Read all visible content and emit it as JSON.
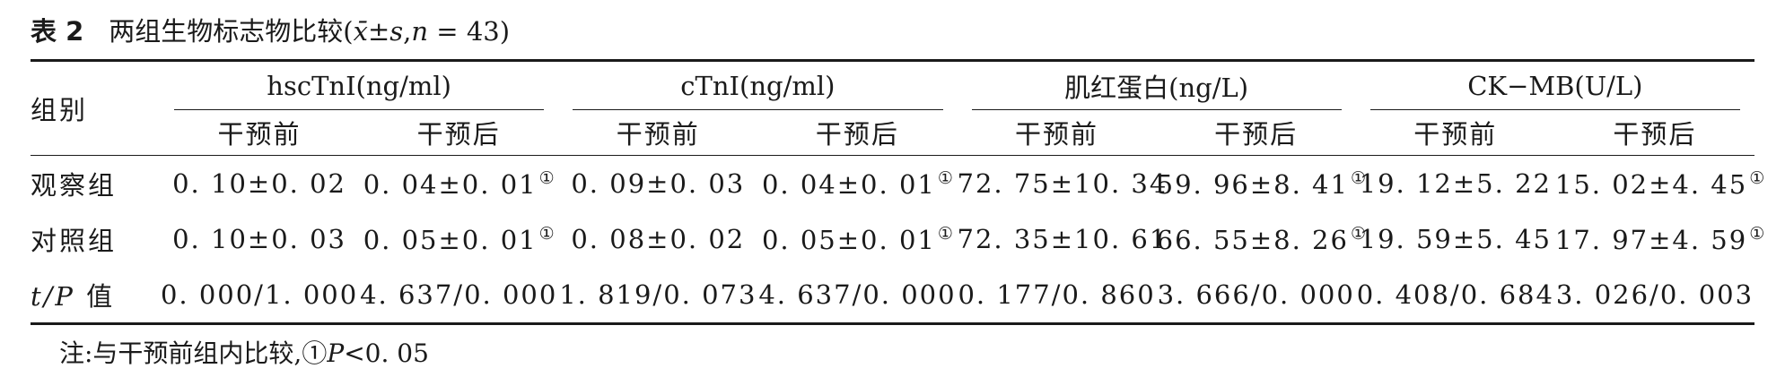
{
  "caption": {
    "number": "表 2",
    "title": "两组生物标志物比较",
    "stats_open": "(",
    "stats_var": "x̄±s",
    "stats_sep": ",",
    "stats_n_var": "n",
    "stats_n_val": " = 43",
    "stats_close": ")"
  },
  "table": {
    "row_header": "组别",
    "groups": [
      "hscTnI(ng/ml)",
      "cTnI(ng/ml)",
      "肌红蛋白(ng/L)",
      "CK−MB(U/L)"
    ],
    "subheaders": [
      "干预前",
      "干预后",
      "干预前",
      "干预后",
      "干预前",
      "干预后",
      "干预前",
      "干预后"
    ],
    "rows": [
      {
        "label": "观察组",
        "cells": [
          "0. 10±0. 02",
          "0. 04±0. 01",
          "0. 09±0. 03",
          "0. 04±0. 01",
          "72. 75±10. 34",
          "59. 96±8. 41",
          "19. 12±5. 22",
          "15. 02±4. 45"
        ]
      },
      {
        "label": "对照组",
        "cells": [
          "0. 10±0. 03",
          "0. 05±0. 01",
          "0. 08±0. 02",
          "0. 05±0. 01",
          "72. 35±10. 61",
          "66. 55±8. 26",
          "19. 59±5. 45",
          "17. 97±4. 59"
        ]
      },
      {
        "label_var": "t/P",
        "label_text": " 值",
        "cells": [
          "0. 000/1. 000",
          "4. 637/0. 000",
          "1. 819/0. 073",
          "4. 637/0. 000",
          "0. 177/0. 860",
          "3. 666/0. 000",
          "0. 408/0. 684",
          "3. 026/0. 003"
        ]
      }
    ],
    "marker": "①"
  },
  "note": {
    "prefix": "注:与干预前组内比较,",
    "marker": "①",
    "var": "P",
    "rest": "<0. 05"
  }
}
